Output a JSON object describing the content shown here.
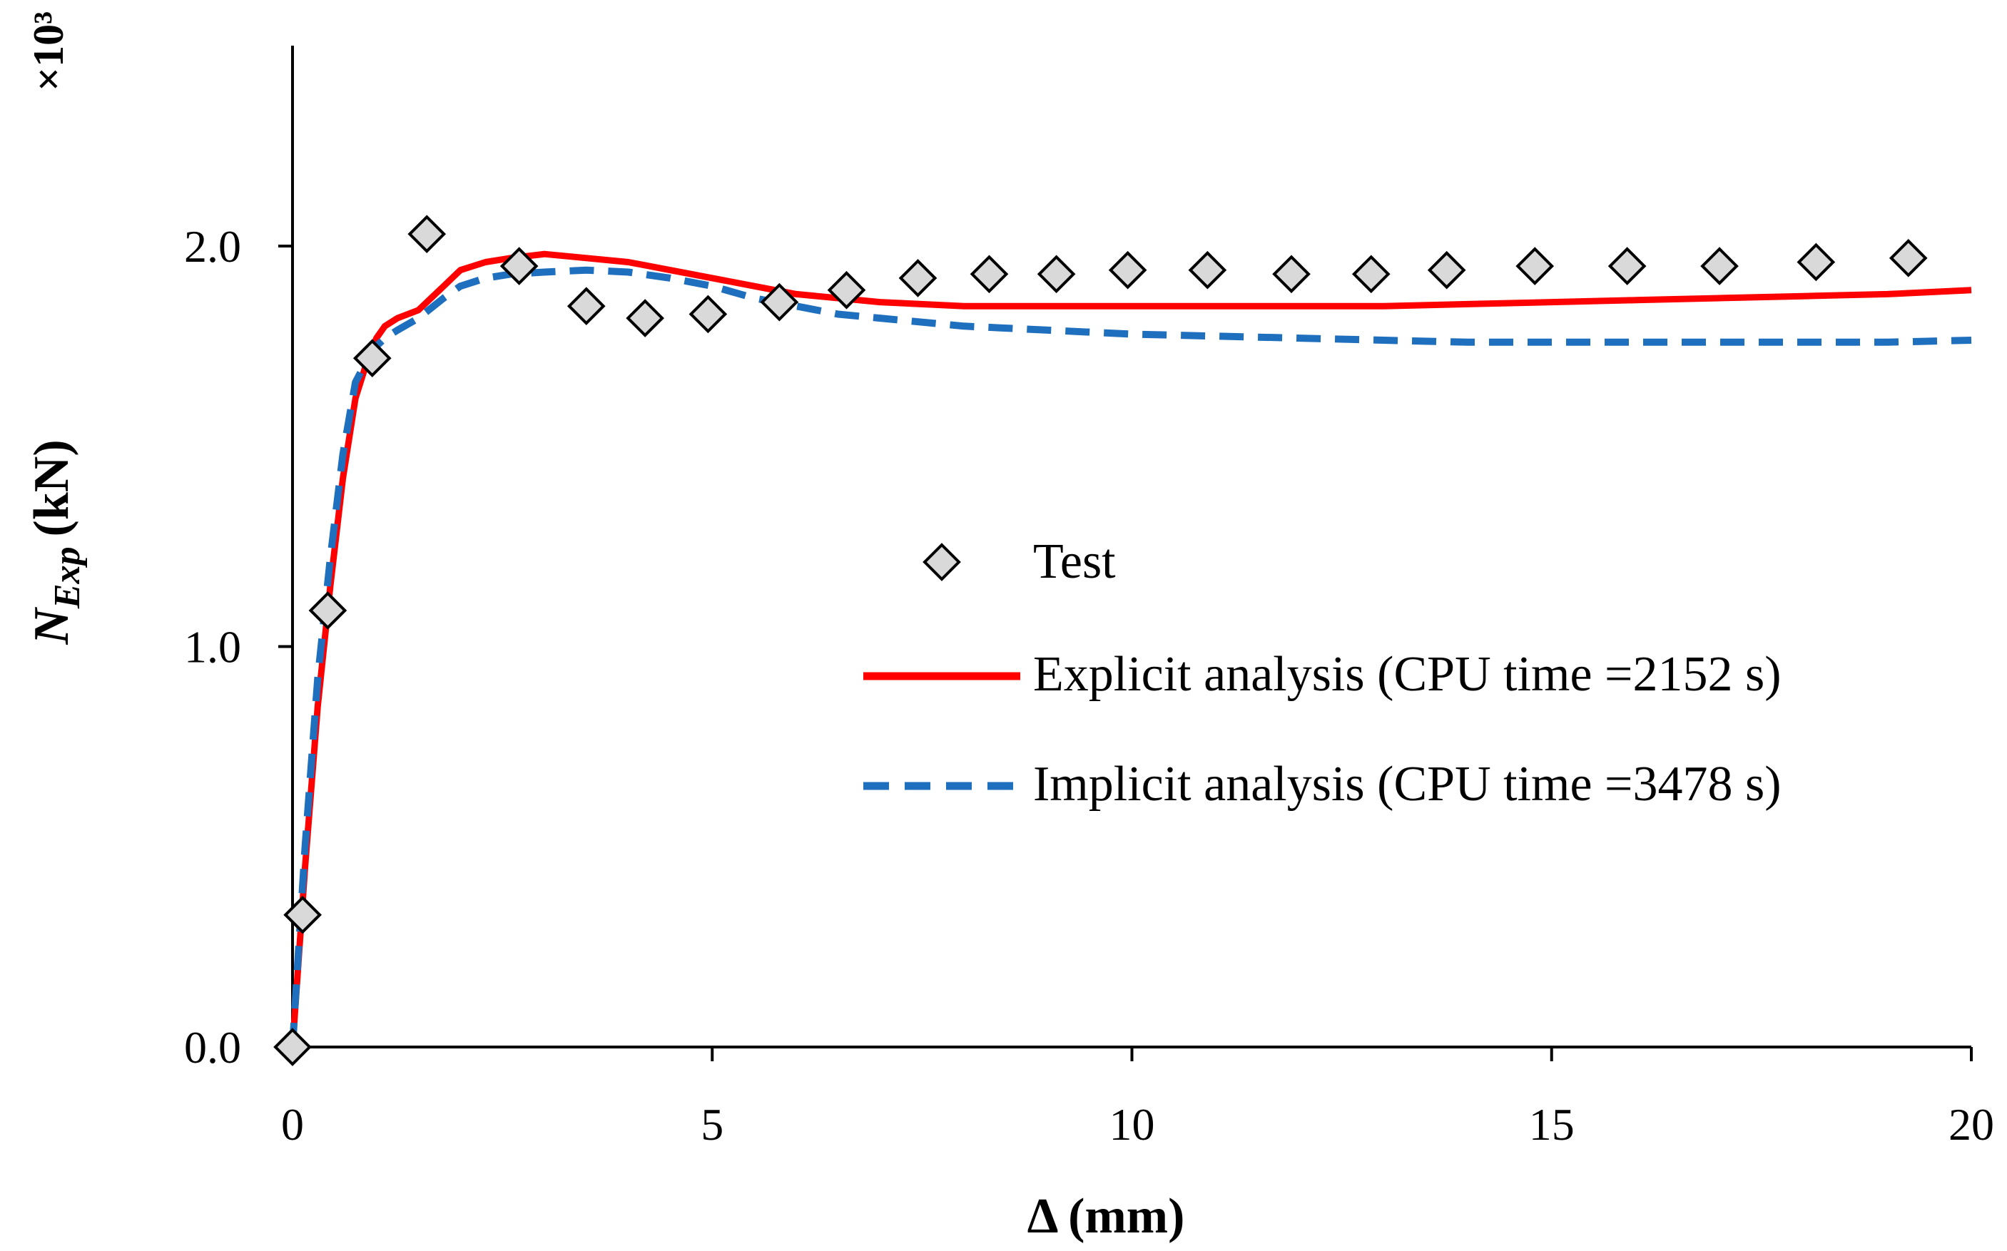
{
  "chart_data": {
    "type": "line",
    "title": "",
    "xlabel": "Δ (mm)",
    "ylabel_main": "N",
    "ylabel_sub": "Exp",
    "ylabel_unit": "(kN)",
    "y_multiplier": "×10³",
    "xlim": [
      0,
      20
    ],
    "ylim": [
      0,
      2.5
    ],
    "x_ticks": [
      0,
      5,
      10,
      15,
      20
    ],
    "x_tick_labels": [
      "0",
      "5",
      "10",
      "15",
      "20"
    ],
    "y_ticks": [
      0,
      1,
      2
    ],
    "y_tick_labels": [
      "0.0",
      "1.0",
      "2.0"
    ],
    "grid": false,
    "legend_position": "center-right",
    "series": [
      {
        "name": "Test",
        "kind": "markers",
        "marker": "diamond",
        "color": "#d9d9d9",
        "x": [
          0,
          0.12,
          0.42,
          0.95,
          1.6,
          2.7,
          3.5,
          4.2,
          4.95,
          5.8,
          6.6,
          7.45,
          8.3,
          9.1,
          9.95,
          10.9,
          11.9,
          12.85,
          13.75,
          14.8,
          15.9,
          17.0,
          18.15,
          19.25
        ],
        "y": [
          0,
          0.33,
          1.09,
          1.72,
          2.03,
          1.95,
          1.85,
          1.82,
          1.83,
          1.86,
          1.89,
          1.92,
          1.93,
          1.93,
          1.94,
          1.94,
          1.93,
          1.93,
          1.94,
          1.95,
          1.95,
          1.95,
          1.96,
          1.97
        ]
      },
      {
        "name": "Explicit analysis (CPU time =2152 s)",
        "kind": "line",
        "color": "#ff0000",
        "dash": "solid",
        "x": [
          0,
          0.05,
          0.15,
          0.3,
          0.45,
          0.6,
          0.75,
          0.9,
          1.0,
          1.1,
          1.25,
          1.5,
          1.8,
          2.0,
          2.3,
          2.6,
          3.0,
          3.5,
          4.0,
          4.5,
          5.0,
          5.5,
          6.0,
          6.5,
          7.0,
          8.0,
          9.0,
          10.0,
          11.0,
          12.0,
          13.0,
          14.0,
          15.0,
          16.0,
          17.0,
          18.0,
          19.0,
          20.0
        ],
        "y": [
          0,
          0.15,
          0.45,
          0.85,
          1.15,
          1.42,
          1.62,
          1.72,
          1.77,
          1.8,
          1.82,
          1.84,
          1.9,
          1.94,
          1.96,
          1.97,
          1.98,
          1.97,
          1.96,
          1.94,
          1.92,
          1.9,
          1.88,
          1.87,
          1.86,
          1.85,
          1.85,
          1.85,
          1.85,
          1.85,
          1.85,
          1.855,
          1.86,
          1.865,
          1.87,
          1.875,
          1.88,
          1.89
        ]
      },
      {
        "name": "Implicit analysis  (CPU time =3478 s)",
        "kind": "line",
        "color": "#1f6fbf",
        "dash": "dashed",
        "x": [
          0,
          0.05,
          0.15,
          0.3,
          0.45,
          0.6,
          0.75,
          0.9,
          1.0,
          1.1,
          1.25,
          1.5,
          1.8,
          2.0,
          2.3,
          2.6,
          3.0,
          3.5,
          4.0,
          4.5,
          5.0,
          5.5,
          6.0,
          6.5,
          7.0,
          8.0,
          9.0,
          10.0,
          11.0,
          12.0,
          13.0,
          14.0,
          15.0,
          16.0,
          17.0,
          18.0,
          19.0,
          20.0
        ],
        "y": [
          0,
          0.17,
          0.5,
          0.92,
          1.22,
          1.48,
          1.66,
          1.72,
          1.75,
          1.77,
          1.79,
          1.82,
          1.87,
          1.9,
          1.92,
          1.93,
          1.935,
          1.94,
          1.935,
          1.92,
          1.9,
          1.87,
          1.85,
          1.83,
          1.82,
          1.8,
          1.79,
          1.78,
          1.775,
          1.77,
          1.765,
          1.76,
          1.76,
          1.76,
          1.76,
          1.76,
          1.76,
          1.765
        ]
      }
    ]
  }
}
